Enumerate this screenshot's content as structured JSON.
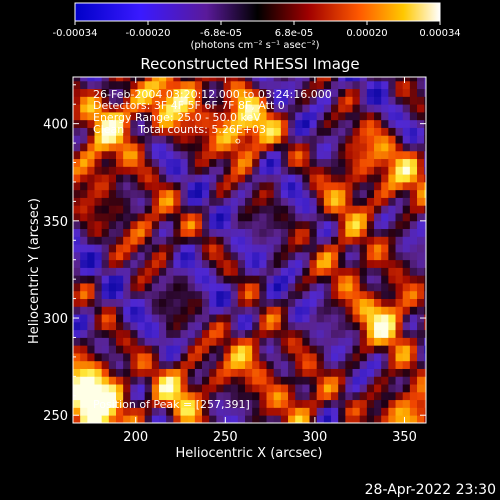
{
  "colorbar": {
    "tick_labels": [
      "-0.00034",
      "-0.00020",
      "-6.8e-05",
      "6.8e-05",
      "0.00020",
      "0.00034"
    ],
    "range": [
      -0.00034,
      0.00034
    ],
    "unit_label": "(photons cm⁻² s⁻¹ asec⁻²)"
  },
  "chart_data": {
    "type": "heatmap",
    "title": "Reconstructed RHESSI Image",
    "xlabel": "Heliocentric X (arcsec)",
    "ylabel": "Heliocentric Y (arcsec)",
    "xlim": [
      165,
      362
    ],
    "ylim": [
      246,
      424
    ],
    "xticks": [
      200,
      250,
      300,
      350
    ],
    "yticks": [
      250,
      300,
      350,
      400
    ],
    "annotation_lines": [
      "26-Feb-2004 03:20:12.000 to 03:24:16.000",
      "Detectors: 3F 4F 5F 6F 7F 8F, Att 0",
      "Energy Range: 25.0 - 50.0 keV",
      "Clean    Total counts: 5.26E+03"
    ],
    "peak_label": "Position of Peak = [257,391]",
    "peak_position": [
      257,
      391
    ],
    "hotspots": [
      {
        "x": 260,
        "y": 398,
        "amp": 1.0
      },
      {
        "x": 223,
        "y": 414,
        "amp": 0.85
      },
      {
        "x": 188,
        "y": 403,
        "amp": 0.75
      },
      {
        "x": 176,
        "y": 376,
        "amp": 0.55
      },
      {
        "x": 172,
        "y": 265,
        "amp": 0.9
      },
      {
        "x": 182,
        "y": 252,
        "amp": 0.75
      },
      {
        "x": 225,
        "y": 262,
        "amp": 0.7
      },
      {
        "x": 262,
        "y": 282,
        "amp": 0.55
      },
      {
        "x": 292,
        "y": 258,
        "amp": 0.55
      },
      {
        "x": 340,
        "y": 300,
        "amp": 0.85
      },
      {
        "x": 352,
        "y": 250,
        "amp": 0.8
      },
      {
        "x": 318,
        "y": 330,
        "amp": 0.45
      },
      {
        "x": 352,
        "y": 372,
        "amp": 0.55
      },
      {
        "x": 328,
        "y": 384,
        "amp": 0.45
      },
      {
        "x": 208,
        "y": 348,
        "amp": 0.45
      },
      {
        "x": 315,
        "y": 358,
        "amp": 0.35
      }
    ]
  },
  "timestamp": "28-Apr-2022 23:30"
}
